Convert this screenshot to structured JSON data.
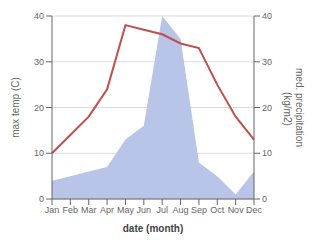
{
  "chart_data": {
    "type": "line",
    "categories": [
      "Jan",
      "Feb",
      "Mar",
      "Apr",
      "May",
      "Jun",
      "Jul",
      "Aug",
      "Sep",
      "Oct",
      "Nov",
      "Dec"
    ],
    "series": [
      {
        "type": "area",
        "axis": "y2",
        "color": "#b8c4e8",
        "values": [
          4,
          5,
          6,
          7,
          13,
          16,
          40,
          35,
          8,
          5,
          1,
          6
        ]
      },
      {
        "type": "line",
        "color": "#c0504d",
        "values": [
          10,
          14,
          18,
          24,
          38,
          37,
          36,
          34,
          33,
          25,
          18,
          13
        ]
      }
    ],
    "xlabel": "date (month)",
    "ylabel": "max temp (C)",
    "y2label": "med. precipitation\n (kg/m2)",
    "ylim": [
      0,
      40
    ],
    "yticks": [
      0,
      10,
      20,
      30,
      40
    ],
    "y2lim": [
      0,
      40
    ],
    "y2ticks": [
      0,
      10,
      20,
      30,
      40
    ],
    "grid": true
  }
}
